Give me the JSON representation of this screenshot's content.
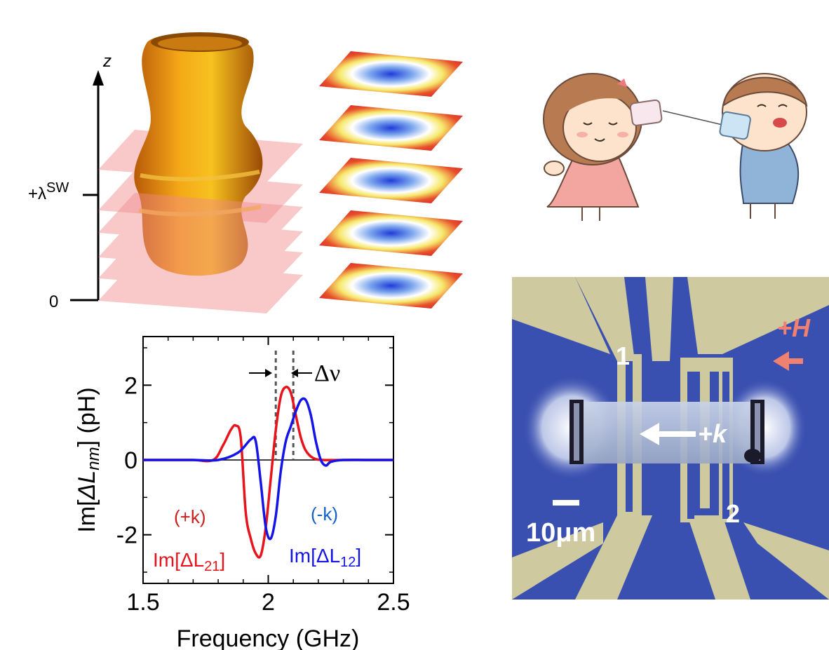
{
  "figure": {
    "panel_a": {
      "axis_label": "z",
      "tick_top": "+λ",
      "tick_top_sup": "SW",
      "tick_bottom": "0"
    },
    "panel_b": {
      "description_text": ""
    },
    "panel_c": {
      "delta_label": "Δν",
      "label_plus_k": "(+k)",
      "label_minus_k": "(-k)",
      "label_L21": "Im[ΔL",
      "label_L21_sub": "21",
      "label_L12": "Im[ΔL",
      "label_L12_sub": "12",
      "bracket": "]",
      "ylabel_pre": "Im[",
      "ylabel_sym": "ΔL",
      "ylabel_sub": "nm",
      "ylabel_post": "] (pH)",
      "xlabel": "Frequency (GHz)"
    },
    "panel_d": {
      "port_1": "1",
      "port_2": "2",
      "field_label": "+H",
      "wave_label": "+k",
      "scale_label": "10μm"
    }
  },
  "chart_data": {
    "type": "line",
    "x_ticks": [
      "1.5",
      "2",
      "2.5"
    ],
    "y_ticks": [
      "2",
      "0",
      "-2"
    ],
    "xlim": [
      1.5,
      2.5
    ],
    "ylim": [
      -3.3,
      3.3
    ],
    "xlabel": "Frequency (GHz)",
    "ylabel": "Im[ΔLnm] (pH)",
    "grid": false,
    "series": [
      {
        "name": "Im[ΔL21]",
        "color": "#e8141c",
        "x": [
          1.5,
          1.6,
          1.7,
          1.78,
          1.82,
          1.85,
          1.87,
          1.89,
          1.91,
          1.93,
          1.95,
          1.97,
          1.99,
          2.01,
          2.03,
          2.05,
          2.07,
          2.09,
          2.11,
          2.13,
          2.15,
          2.18,
          2.22,
          2.3,
          2.4,
          2.5
        ],
        "y": [
          0.0,
          0.0,
          0.0,
          0.0,
          0.4,
          0.8,
          0.92,
          0.6,
          -1.4,
          -2.1,
          -2.5,
          -2.55,
          -1.8,
          -0.5,
          0.8,
          1.7,
          1.95,
          1.8,
          1.2,
          0.6,
          0.25,
          0.05,
          0.0,
          0.0,
          0.0,
          0.0
        ]
      },
      {
        "name": "Im[ΔL12]",
        "color": "#1414e8",
        "x": [
          1.5,
          1.6,
          1.7,
          1.8,
          1.88,
          1.93,
          1.95,
          1.97,
          1.99,
          2.01,
          2.03,
          2.05,
          2.07,
          2.09,
          2.11,
          2.13,
          2.15,
          2.17,
          2.19,
          2.21,
          2.23,
          2.25,
          2.3,
          2.4,
          2.5
        ],
        "y": [
          0.0,
          0.0,
          0.0,
          0.0,
          0.2,
          0.55,
          0.5,
          -0.6,
          -1.8,
          -2.1,
          -1.5,
          -0.3,
          0.5,
          0.9,
          1.3,
          1.6,
          1.6,
          1.2,
          0.5,
          0.0,
          -0.15,
          -0.05,
          0.0,
          0.0,
          0.0
        ]
      }
    ],
    "delta_lines_x": [
      2.03,
      2.1
    ]
  },
  "colors": {
    "red_curve": "#e8141c",
    "blue_curve": "#1414e8",
    "plusk_text": "#c8201c",
    "minusk_text": "#1460c8",
    "field_arrow": "#f08070",
    "chip_blue": "#3a50b0",
    "electrode": "#cfc9a0"
  }
}
